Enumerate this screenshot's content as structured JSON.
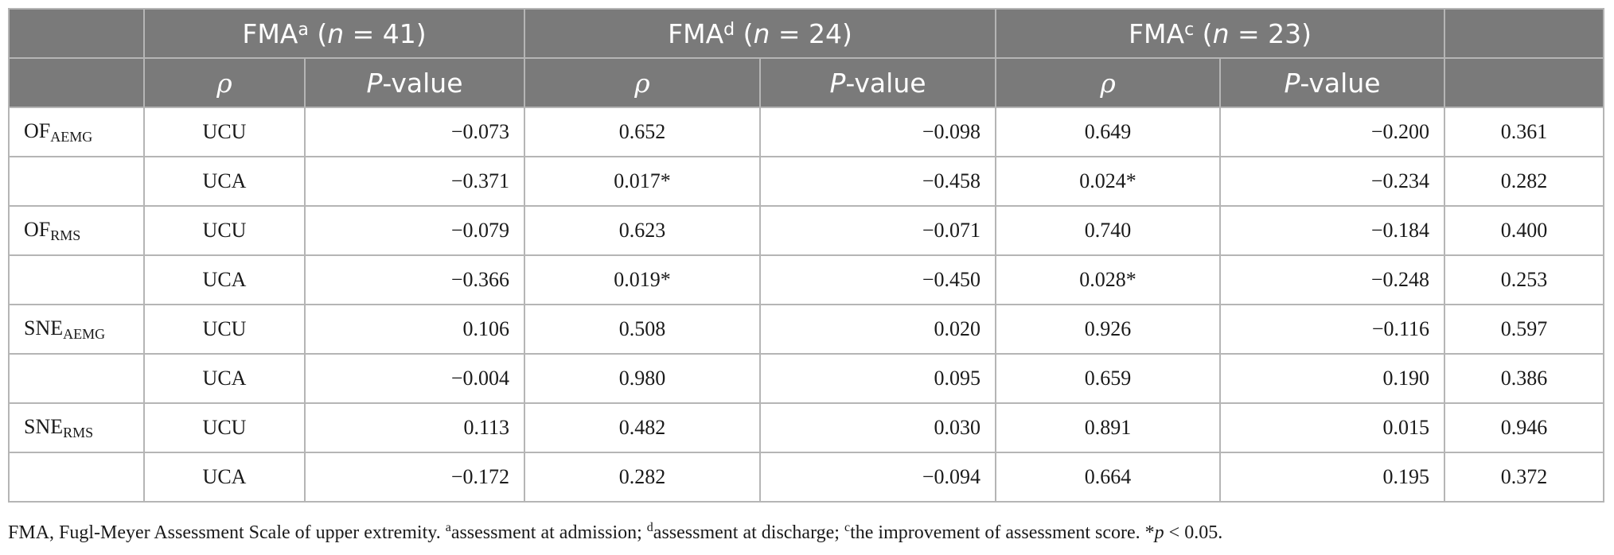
{
  "header": {
    "groups": [
      {
        "prefix": "FMA",
        "sup": "a",
        "open": " (",
        "n_var": "n",
        "eq": " = 41)"
      },
      {
        "prefix": "FMA",
        "sup": "d",
        "open": " (",
        "n_var": "n",
        "eq": " = 24)"
      },
      {
        "prefix": "FMA",
        "sup": "c",
        "open": " (",
        "n_var": "n",
        "eq": " = 23)"
      }
    ],
    "rho": "ρ",
    "p_italic": "P",
    "p_rest": "-value"
  },
  "rows": [
    {
      "label_main": "OF",
      "label_sub": "AEMG",
      "cond": "UCU",
      "c1": "−0.073",
      "c2": "0.652",
      "c3": "−0.098",
      "c4": "0.649",
      "c5": "−0.200",
      "c6": "0.361"
    },
    {
      "label_main": "",
      "label_sub": "",
      "cond": "UCA",
      "c1": "−0.371",
      "c2": "0.017*",
      "c3": "−0.458",
      "c4": "0.024*",
      "c5": "−0.234",
      "c6": "0.282"
    },
    {
      "label_main": "OF",
      "label_sub": "RMS",
      "cond": "UCU",
      "c1": "−0.079",
      "c2": "0.623",
      "c3": "−0.071",
      "c4": "0.740",
      "c5": "−0.184",
      "c6": "0.400"
    },
    {
      "label_main": "",
      "label_sub": "",
      "cond": "UCA",
      "c1": "−0.366",
      "c2": "0.019*",
      "c3": "−0.450",
      "c4": "0.028*",
      "c5": "−0.248",
      "c6": "0.253"
    },
    {
      "label_main": "SNE",
      "label_sub": "AEMG",
      "cond": "UCU",
      "c1": "0.106",
      "c2": "0.508",
      "c3": "0.020",
      "c4": "0.926",
      "c5": "−0.116",
      "c6": "0.597"
    },
    {
      "label_main": "",
      "label_sub": "",
      "cond": "UCA",
      "c1": "−0.004",
      "c2": "0.980",
      "c3": "0.095",
      "c4": "0.659",
      "c5": "0.190",
      "c6": "0.386"
    },
    {
      "label_main": "SNE",
      "label_sub": "RMS",
      "cond": "UCU",
      "c1": "0.113",
      "c2": "0.482",
      "c3": "0.030",
      "c4": "0.891",
      "c5": "0.015",
      "c6": "0.946"
    },
    {
      "label_main": "",
      "label_sub": "",
      "cond": "UCA",
      "c1": "−0.172",
      "c2": "0.282",
      "c3": "−0.094",
      "c4": "0.664",
      "c5": "0.195",
      "c6": "0.372"
    }
  ],
  "footnote": {
    "lead": "FMA, Fugl-Meyer Assessment Scale of upper extremity. ",
    "sup_a": "a",
    "text_a": "assessment at admission; ",
    "sup_d": "d",
    "text_d": "assessment at discharge; ",
    "sup_c": "c",
    "text_c": "the improvement of assessment score. *",
    "p_var": "p",
    "tail": " < 0.05."
  }
}
